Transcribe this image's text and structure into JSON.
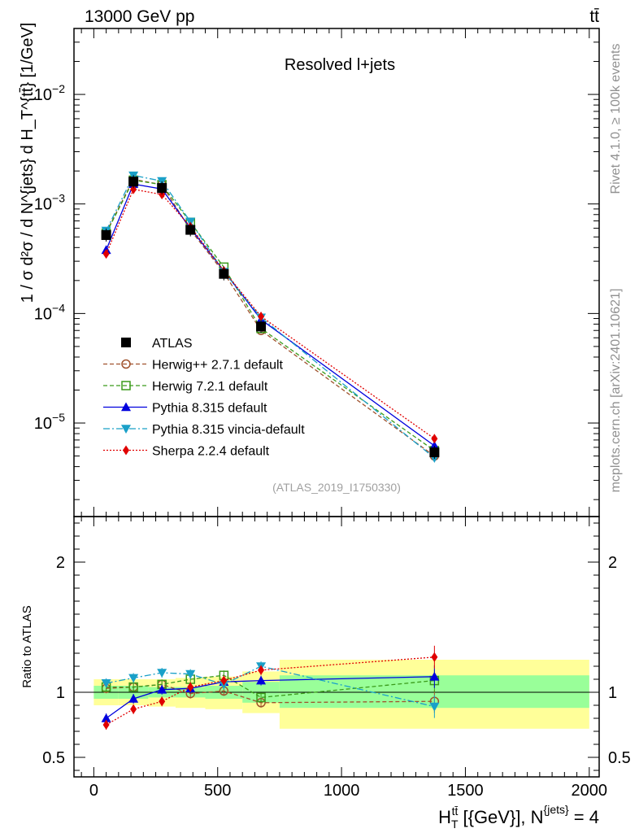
{
  "chart_data": [
    {
      "type": "line",
      "panel": "main",
      "title": "Resolved l+jets",
      "header_left": "13000 GeV pp",
      "header_right": "tt̄",
      "ylabel": "1 / σ d²σ / d N^{jets} d H_T^{tt̄} [1/GeV]",
      "xlim": [
        -80,
        2040
      ],
      "ylim": [
        1.4e-06,
        0.04
      ],
      "yscale": "log",
      "yticks": [
        {
          "value": 1e-05,
          "base": "10",
          "exp": "−5"
        },
        {
          "value": 0.0001,
          "base": "10",
          "exp": "−4"
        },
        {
          "value": 0.001,
          "base": "10",
          "exp": "−3"
        },
        {
          "value": 0.01,
          "base": "10",
          "exp": "−2"
        }
      ],
      "watermark": "(ATLAS_2019_I1750330)",
      "side_text_top": "Rivet 4.1.0, ≥ 100k events",
      "side_text_bottom": "mcplots.cern.ch [arXiv:2401.10621]",
      "x_points": [
        50,
        160,
        275,
        390,
        525,
        675,
        1375
      ],
      "bin_edges": [
        0,
        100,
        220,
        330,
        450,
        600,
        750,
        2000
      ],
      "data": {
        "name": "ATLAS",
        "values": [
          0.00052,
          0.0016,
          0.0014,
          0.00058,
          0.00023,
          7.6e-05,
          5.4e-06
        ]
      },
      "series": [
        {
          "name": "Herwig++ 2.7.1 default",
          "color": "#a0522d",
          "marker": "open-circle",
          "dash": "5,3",
          "values": [
            0.00055,
            0.00168,
            0.0015,
            0.00058,
            0.000235,
            7e-05,
            5e-06
          ]
        },
        {
          "name": "Herwig 7.2.1 default",
          "color": "#3a9b1a",
          "marker": "open-square",
          "dash": "5,3",
          "values": [
            0.00054,
            0.00165,
            0.0015,
            0.00068,
            0.000265,
            7.3e-05,
            5.6e-06
          ]
        },
        {
          "name": "Pythia 8.315 default",
          "color": "#0000dd",
          "marker": "triangle-up",
          "dash": "",
          "values": [
            0.00038,
            0.00152,
            0.00137,
            0.0006,
            0.000245,
            8.8e-05,
            6.2e-06
          ]
        },
        {
          "name": "Pythia 8.315 vincia-default",
          "color": "#1aa0c8",
          "marker": "triangle-down",
          "dash": "8,3,2,3",
          "values": [
            0.00057,
            0.00182,
            0.00162,
            0.00069,
            0.00024,
            9.2e-05,
            4.8e-06
          ]
        },
        {
          "name": "Sherpa 2.2.4 default",
          "color": "#e00000",
          "marker": "diamond",
          "dash": "2,2",
          "values": [
            0.00035,
            0.00136,
            0.00122,
            0.00062,
            0.000245,
            9.4e-05,
            7.2e-06
          ]
        }
      ]
    },
    {
      "type": "line",
      "panel": "ratio",
      "ylabel": "Ratio to ATLAS",
      "xlabel_main": "H",
      "xlabel_sub": "T",
      "xlabel_sup": "tt̄",
      "xlabel_rest": " [{GeV}], N",
      "xlabel_sup2": "{jets}",
      "xlabel_end": " = 4",
      "xlim": [
        -80,
        2040
      ],
      "ylim": [
        0.35,
        2.35
      ],
      "xticks": [
        0,
        500,
        1000,
        1500,
        2000
      ],
      "xtick_labels": [
        "0",
        "500",
        "1000",
        "1500",
        "2000"
      ],
      "yticks": [
        0.5,
        1,
        2
      ],
      "ytick_labels": [
        "0.5",
        "1",
        "2"
      ],
      "bands": {
        "bin_edges": [
          0,
          100,
          220,
          330,
          450,
          600,
          750,
          2000
        ],
        "green_low": [
          0.95,
          0.95,
          0.96,
          0.96,
          0.95,
          0.92,
          0.88
        ],
        "green_high": [
          1.05,
          1.05,
          1.04,
          1.04,
          1.05,
          1.08,
          1.13
        ],
        "yellow_low": [
          0.9,
          0.9,
          0.89,
          0.88,
          0.87,
          0.84,
          0.72
        ],
        "yellow_high": [
          1.1,
          1.1,
          1.1,
          1.11,
          1.12,
          1.16,
          1.25
        ]
      },
      "series": [
        {
          "name": "Herwig++ 2.7.1 default",
          "color": "#a0522d",
          "marker": "open-circle",
          "dash": "5,3",
          "values": [
            1.03,
            1.04,
            1.06,
            0.99,
            1.01,
            0.92,
            0.93
          ]
        },
        {
          "name": "Herwig 7.2.1 default",
          "color": "#3a9b1a",
          "marker": "open-square",
          "dash": "5,3",
          "values": [
            1.04,
            1.04,
            1.06,
            1.1,
            1.13,
            0.96,
            1.09
          ]
        },
        {
          "name": "Pythia 8.315 default",
          "color": "#0000dd",
          "marker": "triangle-up",
          "dash": "",
          "values": [
            0.8,
            0.95,
            1.02,
            1.03,
            1.08,
            1.09,
            1.12
          ]
        },
        {
          "name": "Pythia 8.315 vincia-default",
          "color": "#1aa0c8",
          "marker": "triangle-down",
          "dash": "8,3,2,3",
          "values": [
            1.07,
            1.11,
            1.15,
            1.14,
            1.06,
            1.2,
            0.89
          ]
        },
        {
          "name": "Sherpa 2.2.4 default",
          "color": "#e00000",
          "marker": "diamond",
          "dash": "2,2",
          "values": [
            0.75,
            0.87,
            0.93,
            1.04,
            1.09,
            1.17,
            1.27
          ]
        }
      ]
    }
  ]
}
